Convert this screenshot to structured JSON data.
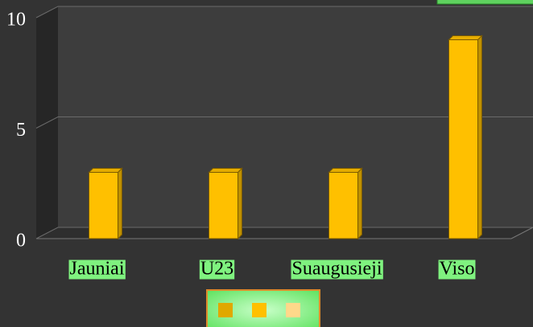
{
  "chart_data": {
    "type": "bar",
    "categories": [
      "Jauniai",
      "U23",
      "Suaugusieji",
      "Viso"
    ],
    "values": [
      3,
      3,
      3,
      9
    ],
    "color": "#ffc000",
    "ylim": [
      0,
      10
    ],
    "yticks": [
      0,
      5,
      10
    ],
    "grid": true,
    "legend": {
      "colors": [
        "#e0a800",
        "#ffc000",
        "#ffd88a"
      ]
    }
  }
}
